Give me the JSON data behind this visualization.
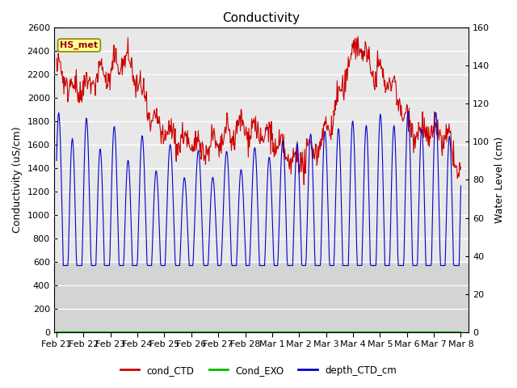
{
  "title": "Conductivity",
  "ylabel_left": "Conductivity (uS/cm)",
  "ylabel_right": "Water Level (cm)",
  "ylim_left": [
    0,
    2600
  ],
  "ylim_right": [
    0,
    160
  ],
  "x_tick_labels": [
    "Feb 21",
    "Feb 22",
    "Feb 23",
    "Feb 24",
    "Feb 25",
    "Feb 26",
    "Feb 27",
    "Feb 28",
    "Mar 1",
    "Mar 2",
    "Mar 3",
    "Mar 4",
    "Mar 5",
    "Mar 6",
    "Mar 7",
    "Mar 8"
  ],
  "x_tick_positions": [
    0,
    1,
    2,
    3,
    4,
    5,
    6,
    7,
    8,
    9,
    10,
    11,
    12,
    13,
    14,
    15
  ],
  "annotation_text": "HS_met",
  "annotation_fg": "#990000",
  "annotation_bg": "#ffff99",
  "annotation_border": "#999900",
  "legend_entries": [
    "cond_CTD",
    "Cond_EXO",
    "depth_CTD_cm"
  ],
  "legend_colors": [
    "#ff0000",
    "#00cc00",
    "#0000ff"
  ],
  "bg_color": "#ffffff",
  "plot_bg_upper": "#e8e8e8",
  "plot_bg_lower": "#d0d0d0",
  "title_fontsize": 11,
  "axis_fontsize": 9,
  "tick_fontsize": 8
}
